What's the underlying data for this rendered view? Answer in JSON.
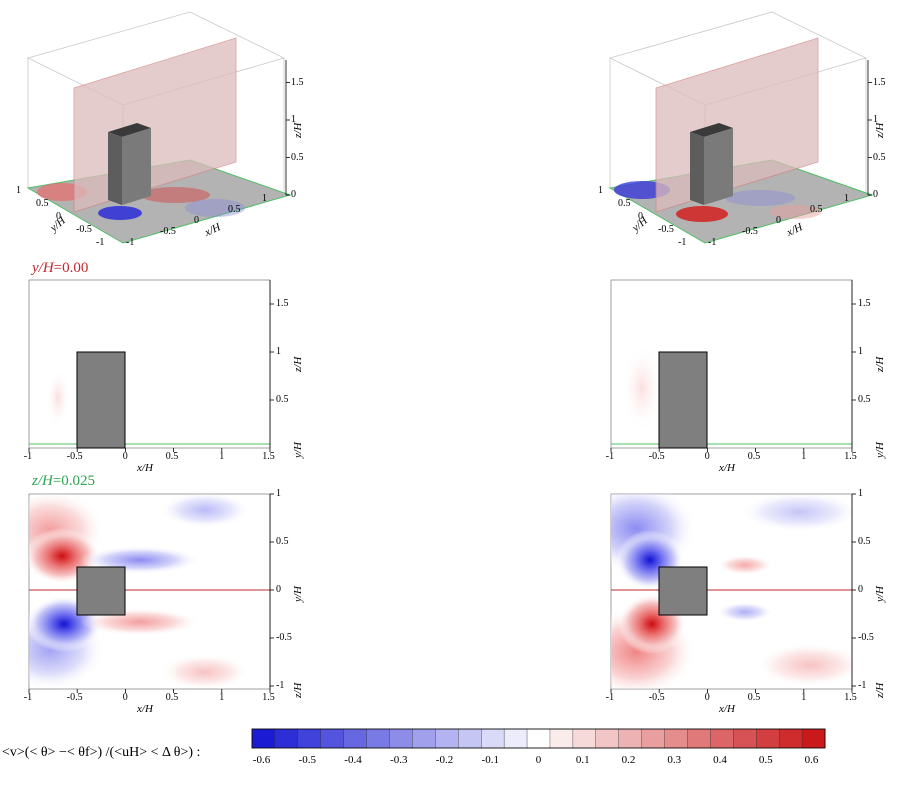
{
  "colors": {
    "red_section": "#c0282d",
    "green_section": "#2ea44f",
    "block": "#7f7f7f",
    "negative": "#1f1fd0",
    "positive": "#d01f1f"
  },
  "labels": {
    "xh": "x/H",
    "yh": "y/H",
    "zh": "z/H",
    "section_y": "y/H",
    "section_y_val": "=0.00",
    "section_z": "z/H",
    "section_z_val": "=0.025"
  },
  "ticks_x": [
    "-1",
    "-0.5",
    "0",
    "0.5",
    "1",
    "1.5"
  ],
  "ticks_z_side": [
    "0.5",
    "1",
    "1.5"
  ],
  "ticks_y_side": [
    "-1",
    "-0.5",
    "0",
    "0.5",
    "1"
  ],
  "ticks_3d_z": [
    "0",
    "0.5",
    "1",
    "1.5"
  ],
  "ticks_3d_y": [
    "1",
    "0.5",
    "0",
    "-0.5",
    "-1"
  ],
  "ticks_3d_x": [
    "-1",
    "-0.5",
    "0",
    "0.5",
    "1"
  ],
  "colorbar": {
    "formula": "<v>(< θ> −< θf>) /(<uH> < Δ θ>) :",
    "ticks": [
      "-0.6",
      "-0.5",
      "-0.4",
      "-0.3",
      "-0.2",
      "-0.1",
      "0",
      "0.1",
      "0.2",
      "0.3",
      "0.4",
      "0.5",
      "0.6"
    ]
  },
  "chart_data": [
    {
      "type": "heatmap",
      "panel": "3D perspective (left)",
      "xlabel": "x/H",
      "ylabel": "y/H",
      "zlabel": "z/H"
    },
    {
      "type": "heatmap",
      "panel": "3D perspective (right)",
      "xlabel": "x/H",
      "ylabel": "y/H",
      "zlabel": "z/H"
    },
    {
      "type": "heatmap",
      "panel": "y/H=0.00 (left)",
      "xlabel": "x/H",
      "ylabel": "z/H",
      "xlim": [
        -1,
        1.5
      ],
      "ylim": [
        0,
        1.75
      ]
    },
    {
      "type": "heatmap",
      "panel": "y/H=0.00 (right)",
      "xlabel": "x/H",
      "ylabel": "z/H",
      "xlim": [
        -1,
        1.5
      ],
      "ylim": [
        0,
        1.75
      ]
    },
    {
      "type": "heatmap",
      "panel": "z/H=0.025 (left)",
      "xlabel": "x/H",
      "ylabel": "y/H",
      "xlim": [
        -1,
        1.5
      ],
      "ylim": [
        -1,
        1
      ]
    },
    {
      "type": "heatmap",
      "panel": "z/H=0.025 (right)",
      "xlabel": "x/H",
      "ylabel": "y/H",
      "xlim": [
        -1,
        1.5
      ],
      "ylim": [
        -1,
        1
      ]
    },
    {
      "type": "colorbar",
      "range": [
        -0.6,
        0.6
      ],
      "levels": 25
    }
  ]
}
